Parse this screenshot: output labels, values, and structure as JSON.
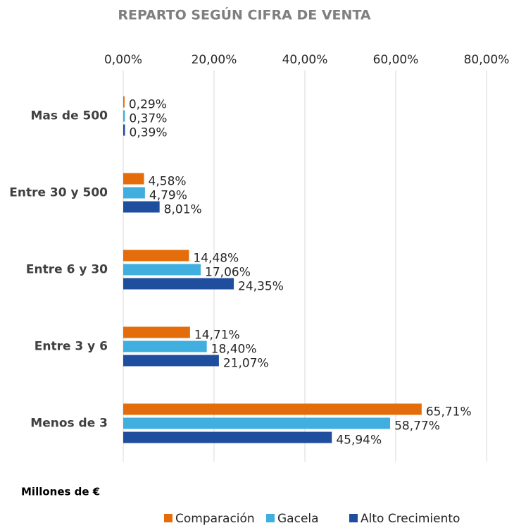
{
  "chart_data": {
    "type": "bar",
    "orientation": "horizontal",
    "title": "REPARTO SEGÚN CIFRA DE VENTA",
    "x_label": "Millones de €",
    "categories": [
      "Mas de 500",
      "Entre 30 y 500",
      "Entre 6 y 30",
      "Entre 3 y 6",
      "Menos de 3"
    ],
    "series": [
      {
        "name": "Comparación",
        "color": "#e46c0a",
        "values": [
          0.29,
          4.58,
          14.48,
          14.71,
          65.71
        ],
        "value_labels": [
          "0,29%",
          "4,58%",
          "14,48%",
          "14,71%",
          "65,71%"
        ]
      },
      {
        "name": "Gacela",
        "color": "#41aee0",
        "values": [
          0.37,
          4.79,
          17.06,
          18.4,
          58.77
        ],
        "value_labels": [
          "0,37%",
          "4,79%",
          "17,06%",
          "18,40%",
          "58,77%"
        ]
      },
      {
        "name": "Alto Crecimiento",
        "color": "#1f4e9e",
        "values": [
          0.39,
          8.01,
          24.35,
          21.07,
          45.94
        ],
        "value_labels": [
          "0,39%",
          "8,01%",
          "24,35%",
          "21,07%",
          "45,94%"
        ]
      }
    ],
    "xlim": [
      0,
      80
    ],
    "xticks": [
      {
        "value": 0,
        "label": "0,00%"
      },
      {
        "value": 20,
        "label": "20,00%"
      },
      {
        "value": 40,
        "label": "40,00%"
      },
      {
        "value": 60,
        "label": "60,00%"
      },
      {
        "value": 80,
        "label": "80,00%"
      }
    ],
    "grid": true,
    "legend": "bottom"
  }
}
